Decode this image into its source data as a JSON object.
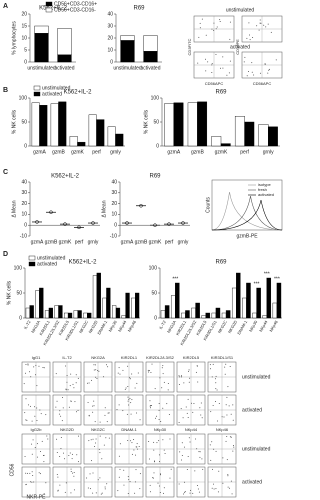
{
  "panels": [
    "A",
    "B",
    "C",
    "D"
  ],
  "chart_data": [
    {
      "type": "bar",
      "stacked": true,
      "title": "K562+IL-2",
      "ylabel": "% lymphocytes",
      "categories": [
        "unstimulated",
        "activated"
      ],
      "ylim": [
        0,
        20
      ],
      "yticks": [
        0,
        5,
        10,
        15,
        20
      ],
      "legend": "upper right",
      "series": [
        {
          "name": "CD56+CD3-CD16+",
          "color": "#000000",
          "values": [
            12,
            3
          ]
        },
        {
          "name": "CD56+CD3-CD16-",
          "color": "#ffffff",
          "values": [
            3,
            11
          ]
        }
      ]
    },
    {
      "type": "bar",
      "stacked": true,
      "title": "R69",
      "categories": [
        "unstimulated",
        "activated"
      ],
      "ylim": [
        0,
        40
      ],
      "yticks": [
        0,
        10,
        20,
        30,
        40
      ],
      "series": [
        {
          "name": "CD56+CD3-CD16+",
          "color": "#000000",
          "values": [
            18,
            9
          ]
        },
        {
          "name": "CD56+CD3-CD16-",
          "color": "#ffffff",
          "values": [
            4,
            13
          ]
        }
      ]
    },
    {
      "type": "bar",
      "title": "K562+IL-2",
      "ylabel": "% NK cells",
      "categories": [
        "gzmA",
        "gzmB",
        "gzmK",
        "perf",
        "grnly"
      ],
      "ylim": [
        0,
        100
      ],
      "yticks": [
        0,
        50,
        100
      ],
      "legend": "upper left",
      "series": [
        {
          "name": "unstimulated",
          "color": "#ffffff",
          "values": [
            90,
            88,
            20,
            65,
            40
          ]
        },
        {
          "name": "activated",
          "color": "#000000",
          "values": [
            85,
            92,
            8,
            55,
            25
          ]
        }
      ]
    },
    {
      "type": "bar",
      "title": "R69",
      "ylabel": "% NK cells",
      "categories": [
        "gzmA",
        "gzmB",
        "gzmK",
        "perf",
        "grnly"
      ],
      "ylim": [
        0,
        100
      ],
      "yticks": [
        0,
        50,
        100
      ],
      "series": [
        {
          "name": "unstimulated",
          "color": "#ffffff",
          "values": [
            88,
            90,
            20,
            62,
            45
          ]
        },
        {
          "name": "activated",
          "color": "#000000",
          "values": [
            90,
            92,
            5,
            50,
            40
          ]
        }
      ]
    },
    {
      "type": "dot",
      "title": "K562+IL-2",
      "ylabel": "Δ Mean",
      "categories": [
        "gzmA",
        "gzmB",
        "gzmK",
        "perf",
        "grnly"
      ],
      "ylim": [
        -10,
        40
      ],
      "yticks": [
        -10,
        0,
        10,
        20,
        30,
        40
      ],
      "values": [
        3,
        12,
        1,
        -2,
        2
      ]
    },
    {
      "type": "dot",
      "title": "R69",
      "ylabel": "Δ Mean",
      "categories": [
        "gzmA",
        "gzmB",
        "gzmK",
        "perf",
        "grnly"
      ],
      "ylim": [
        -10,
        40
      ],
      "yticks": [
        -10,
        0,
        10,
        20,
        30,
        40
      ],
      "values": [
        2,
        18,
        0,
        1,
        2
      ]
    },
    {
      "type": "bar",
      "title": "K562+IL-2",
      "ylabel": "% NK cells",
      "categories": [
        "IL-T2",
        "NKG2A",
        "KIR2DL1",
        "KIR2DL2/L3/S2",
        "KIR2DL5",
        "KIR3DL1/S1",
        "NKG2C",
        "NKG2D",
        "DNAM-1",
        "NKp30",
        "NKp44",
        "NKp46"
      ],
      "ylim": [
        0,
        100
      ],
      "yticks": [
        0,
        50,
        100
      ],
      "legend": "upper left",
      "series": [
        {
          "name": "unstimulated",
          "color": "#ffffff",
          "values": [
            20,
            55,
            15,
            25,
            10,
            15,
            10,
            85,
            40,
            25,
            5,
            40
          ]
        },
        {
          "name": "activated",
          "color": "#000000",
          "values": [
            25,
            60,
            20,
            25,
            10,
            15,
            10,
            90,
            60,
            20,
            50,
            50
          ]
        }
      ]
    },
    {
      "type": "bar",
      "title": "R69",
      "categories": [
        "IL-T2",
        "NKG2A",
        "KIR2DL1",
        "KIR2DL2/L3/S2",
        "KIR2DL5",
        "KIR3DL1/S1",
        "NKG2C",
        "NKG2D",
        "DNAM-1",
        "NKp30",
        "NKp44",
        "NKp46"
      ],
      "ylim": [
        0,
        100
      ],
      "yticks": [
        0,
        50,
        100
      ],
      "series": [
        {
          "name": "unstimulated",
          "color": "#ffffff",
          "values": [
            15,
            45,
            10,
            20,
            5,
            10,
            10,
            60,
            40,
            10,
            5,
            30
          ]
        },
        {
          "name": "activated",
          "color": "#000000",
          "values": [
            25,
            70,
            15,
            30,
            10,
            20,
            15,
            90,
            70,
            60,
            80,
            70
          ]
        }
      ],
      "annotations": [
        {
          "label": "***",
          "category": "NKG2A"
        },
        {
          "label": "***",
          "category": "NKp30"
        },
        {
          "label": "***",
          "category": "NKp44"
        },
        {
          "label": "***",
          "category": "NKp46"
        }
      ]
    }
  ],
  "flow_a": {
    "top_label": "unstimulated",
    "bottom_label": "activated",
    "xlabel": "CD56APC",
    "ylabel_left": "CD3FITC",
    "ylabel_right": "CD16PE"
  },
  "histogram_panel": {
    "ylabel": "Counts",
    "xlabel": "gzmB-PE",
    "legend": [
      "isotype",
      "fresh",
      "activated"
    ]
  },
  "flow_grid": {
    "blocks": [
      {
        "markers": [
          "IgG1",
          "IL-T2",
          "NKG2A",
          "KIR2DL1",
          "KIR2DL2/L3/S2",
          "KIR2DL5",
          "KIR3DL1/S1"
        ]
      },
      {
        "markers": [
          "IgG2b",
          "NKG2D",
          "NKG2C",
          "DNAM-1",
          "NKp30",
          "NKp44",
          "NKp46"
        ]
      }
    ],
    "conditions": [
      "unstimulated",
      "activated"
    ],
    "ylabel": "CD56",
    "xlabel": "NKR-PE"
  }
}
